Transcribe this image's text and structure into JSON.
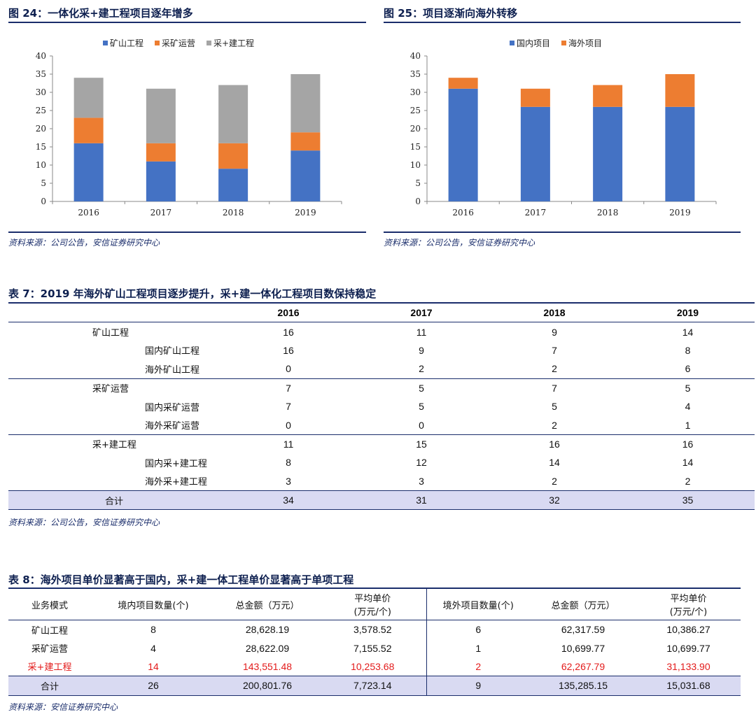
{
  "fig24": {
    "title": "图 24：一体化采+建工程项目逐年增多",
    "source": "资料来源：公司公告，安信证券研究中心"
  },
  "fig25": {
    "title": "图 25：项目逐渐向海外转移",
    "source": "资料来源：公司公告，安信证券研究中心"
  },
  "chart_data": [
    {
      "type": "bar",
      "stacked": true,
      "categories": [
        "2016",
        "2017",
        "2018",
        "2019"
      ],
      "series": [
        {
          "name": "矿山工程",
          "values": [
            16,
            11,
            9,
            14
          ],
          "color": "#4472c4"
        },
        {
          "name": "采矿运营",
          "values": [
            7,
            5,
            7,
            5
          ],
          "color": "#ed7d31"
        },
        {
          "name": "采+建工程",
          "values": [
            11,
            15,
            16,
            16
          ],
          "color": "#a5a5a5"
        }
      ],
      "ylim": [
        0,
        40
      ],
      "yticks": [
        0,
        5,
        10,
        15,
        20,
        25,
        30,
        35,
        40
      ],
      "legend": "top-center",
      "grid": false
    },
    {
      "type": "bar",
      "stacked": true,
      "categories": [
        "2016",
        "2017",
        "2018",
        "2019"
      ],
      "series": [
        {
          "name": "国内项目",
          "values": [
            31,
            26,
            26,
            26
          ],
          "color": "#4472c4"
        },
        {
          "name": "海外项目",
          "values": [
            3,
            5,
            6,
            9
          ],
          "color": "#ed7d31"
        }
      ],
      "ylim": [
        0,
        40
      ],
      "yticks": [
        0,
        5,
        10,
        15,
        20,
        25,
        30,
        35,
        40
      ],
      "legend": "top-center",
      "grid": false
    }
  ],
  "table7": {
    "title": "表 7：2019 年海外矿山工程项目逐步提升，采+建一体化工程项目数保持稳定",
    "headers": [
      "",
      "2016",
      "2017",
      "2018",
      "2019"
    ],
    "groups": [
      {
        "label": "矿山工程",
        "values": [
          "16",
          "11",
          "9",
          "14"
        ],
        "rows": [
          {
            "label": "国内矿山工程",
            "values": [
              "16",
              "9",
              "7",
              "8"
            ]
          },
          {
            "label": "海外矿山工程",
            "values": [
              "0",
              "2",
              "2",
              "6"
            ]
          }
        ]
      },
      {
        "label": "采矿运营",
        "values": [
          "7",
          "5",
          "7",
          "5"
        ],
        "rows": [
          {
            "label": "国内采矿运营",
            "values": [
              "7",
              "5",
              "5",
              "4"
            ]
          },
          {
            "label": "海外采矿运营",
            "values": [
              "0",
              "0",
              "2",
              "1"
            ]
          }
        ]
      },
      {
        "label": "采+建工程",
        "values": [
          "11",
          "15",
          "16",
          "16"
        ],
        "rows": [
          {
            "label": "国内采+建工程",
            "values": [
              "8",
              "12",
              "14",
              "14"
            ]
          },
          {
            "label": "海外采+建工程",
            "values": [
              "3",
              "3",
              "2",
              "2"
            ]
          }
        ]
      }
    ],
    "total": {
      "label": "合计",
      "values": [
        "34",
        "31",
        "32",
        "35"
      ]
    },
    "source": "资料来源：公司公告，安信证券研究中心"
  },
  "table8": {
    "title": "表 8：海外项目单价显著高于国内，采+建一体工程单价显著高于单项工程",
    "headers": {
      "mode": "业务模式",
      "dom_count": "境内项目数量(个)",
      "dom_amount": "总金额（万元）",
      "dom_price_1": "平均单价",
      "dom_price_2": "(万元/个)",
      "ovs_count": "境外项目数量(个)",
      "ovs_amount": "总金额（万元）",
      "ovs_price_1": "平均单价",
      "ovs_price_2": "(万元/个)"
    },
    "rows": [
      {
        "label": "矿山工程",
        "cells": [
          "8",
          "28,628.19",
          "3,578.52",
          "6",
          "62,317.59",
          "10,386.27"
        ],
        "highlight": false
      },
      {
        "label": "采矿运营",
        "cells": [
          "4",
          "28,622.09",
          "7,155.52",
          "1",
          "10,699.77",
          "10,699.77"
        ],
        "highlight": false
      },
      {
        "label": "采+建工程",
        "cells": [
          "14",
          "143,551.48",
          "10,253.68",
          "2",
          "62,267.79",
          "31,133.90"
        ],
        "highlight": true
      }
    ],
    "total": {
      "label": "合计",
      "cells": [
        "26",
        "200,801.76",
        "7,723.14",
        "9",
        "135,285.15",
        "15,031.68"
      ]
    },
    "source": "资料来源：安信证券研究中心"
  }
}
